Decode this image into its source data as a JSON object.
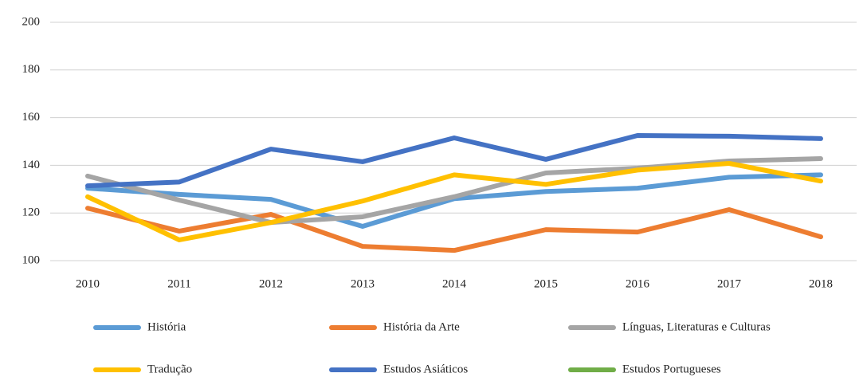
{
  "chart_data": {
    "type": "line",
    "x": [
      "2010",
      "2011",
      "2012",
      "2013",
      "2014",
      "2015",
      "2016",
      "2017",
      "2018"
    ],
    "ylim": [
      100,
      200
    ],
    "yticks": [
      100,
      120,
      140,
      160,
      180,
      200
    ],
    "grid": true,
    "series": [
      {
        "name": "História",
        "color": "#5B9BD5",
        "values": [
          130.4,
          127.8,
          125.7,
          114.4,
          126,
          129,
          130.4,
          135,
          136
        ]
      },
      {
        "name": "História da Arte",
        "color": "#ED7D31",
        "values": [
          122,
          112.4,
          119.4,
          106,
          104.3,
          113,
          112,
          121.4,
          110
        ]
      },
      {
        "name": "Línguas, Literaturas e Culturas",
        "color": "#A5A5A5",
        "values": [
          135.5,
          125.4,
          116,
          118.4,
          126.8,
          136.8,
          138.8,
          141.8,
          142.8
        ]
      },
      {
        "name": "Tradução",
        "color": "#FFC000",
        "values": [
          126.8,
          108.7,
          116,
          125,
          136,
          132,
          138,
          140.8,
          133.4
        ]
      },
      {
        "name": "Estudos Asiáticos",
        "color": "#4472C4",
        "values": [
          131.4,
          133,
          146.8,
          141.5,
          151.5,
          142.5,
          152.5,
          152.2,
          151.2
        ]
      },
      {
        "name": "Estudos Portugueses",
        "color": "#70AD47",
        "values": [
          null,
          null,
          null,
          null,
          null,
          null,
          null,
          null,
          null
        ]
      }
    ]
  }
}
